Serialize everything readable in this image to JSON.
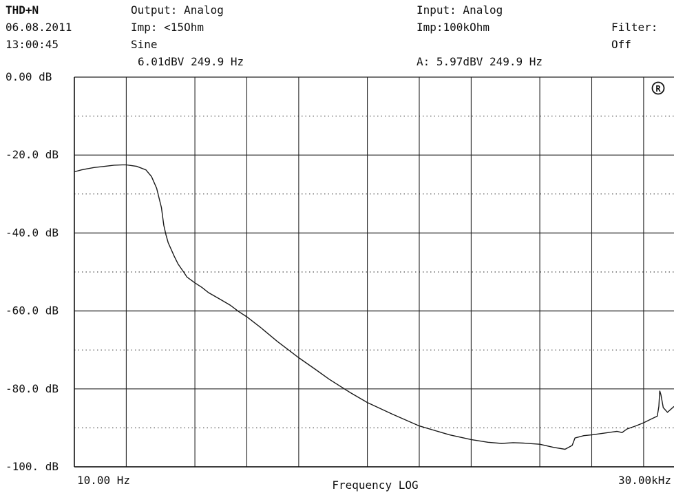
{
  "header": {
    "mode": "THD+N",
    "date": "06.08.2011",
    "time": "13:00:45",
    "output_label": "Output: Analog",
    "output_imp": "Imp: <15Ohm",
    "waveform": "Sine",
    "output_level": "6.01dBV 249.9 Hz",
    "input_label": "Input: Analog",
    "input_imp": "Imp:100kOhm",
    "input_reading": "A: 5.97dBV 249.9 Hz",
    "filter_label": "Filter:",
    "filter_value": "Off",
    "badge": "R"
  },
  "chart_data": {
    "type": "line",
    "title": "",
    "xlabel": "Frequency LOG",
    "ylabel": "",
    "x_scale": "log",
    "xlim": [
      10,
      30000
    ],
    "ylim": [
      -100,
      0
    ],
    "x_tick_labels": [
      "10.00 Hz",
      "30.00kHz"
    ],
    "y_tick_labels": [
      "0.00 dB",
      "-20.0 dB",
      "-40.0 dB",
      "-60.0 dB",
      "-80.0 dB",
      "-100. dB"
    ],
    "grid": true,
    "series": [
      {
        "points": [
          [
            10,
            -24.3
          ],
          [
            11,
            -23.8
          ],
          [
            13,
            -23.2
          ],
          [
            15,
            -22.9
          ],
          [
            17,
            -22.6
          ],
          [
            19,
            -22.5
          ],
          [
            20,
            -22.5
          ],
          [
            23,
            -22.9
          ],
          [
            26,
            -23.8
          ],
          [
            28,
            -25.5
          ],
          [
            30,
            -28.5
          ],
          [
            32,
            -33.5
          ],
          [
            33,
            -38
          ],
          [
            34,
            -40.5
          ],
          [
            35,
            -42.5
          ],
          [
            38,
            -46
          ],
          [
            40,
            -48
          ],
          [
            43,
            -50
          ],
          [
            45,
            -51.3
          ],
          [
            50,
            -52.8
          ],
          [
            55,
            -54
          ],
          [
            60,
            -55.3
          ],
          [
            70,
            -57
          ],
          [
            80,
            -58.5
          ],
          [
            90,
            -60.2
          ],
          [
            100,
            -61.5
          ],
          [
            120,
            -64.2
          ],
          [
            150,
            -67.8
          ],
          [
            200,
            -72
          ],
          [
            250,
            -75
          ],
          [
            300,
            -77.5
          ],
          [
            400,
            -81
          ],
          [
            500,
            -83.5
          ],
          [
            700,
            -86.5
          ],
          [
            1000,
            -89.5
          ],
          [
            1500,
            -91.8
          ],
          [
            2000,
            -93
          ],
          [
            2500,
            -93.7
          ],
          [
            3000,
            -94
          ],
          [
            3500,
            -93.8
          ],
          [
            4000,
            -93.9
          ],
          [
            5000,
            -94.2
          ],
          [
            6000,
            -95
          ],
          [
            7000,
            -95.5
          ],
          [
            7700,
            -94.5
          ],
          [
            8000,
            -92.6
          ],
          [
            9000,
            -92
          ],
          [
            10000,
            -91.8
          ],
          [
            12000,
            -91.3
          ],
          [
            14000,
            -90.9
          ],
          [
            15000,
            -91.2
          ],
          [
            16000,
            -90.3
          ],
          [
            18000,
            -89.5
          ],
          [
            20000,
            -88.7
          ],
          [
            22000,
            -87.8
          ],
          [
            24000,
            -87
          ],
          [
            24500,
            -84.5
          ],
          [
            24800,
            -80.5
          ],
          [
            25200,
            -81.5
          ],
          [
            26000,
            -84.8
          ],
          [
            27500,
            -86
          ],
          [
            30000,
            -84.5
          ]
        ]
      }
    ]
  }
}
